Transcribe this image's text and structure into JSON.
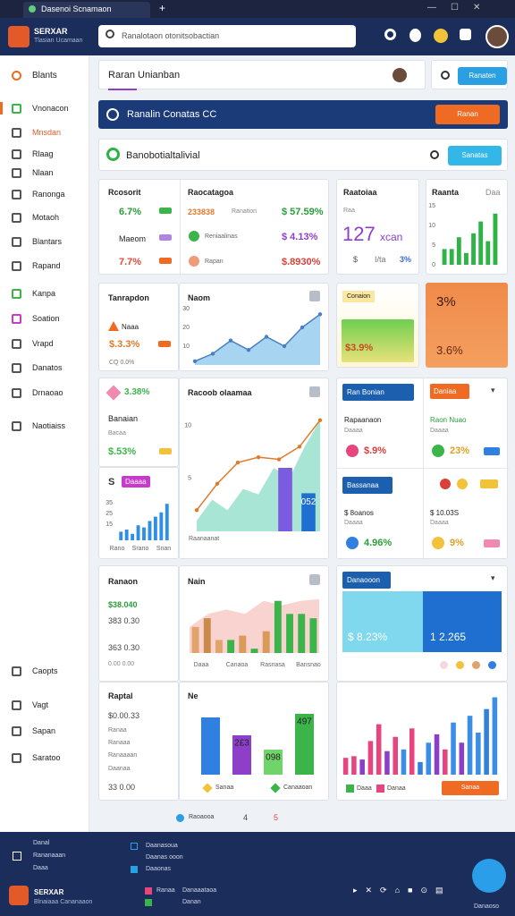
{
  "browser": {
    "tab_title": "Dasenoi Scnamaon"
  },
  "header": {
    "brand": "SERXAR",
    "brand_sub": "Tlasian Ucamaan",
    "search_placeholder": "Ranalotaon otonitsobactian"
  },
  "sidebar": {
    "items": [
      "Blants",
      "Vnonacon",
      "Mnsdan",
      "Rlaag",
      "Nlaan",
      "Ranonga",
      "Motaoh",
      "Blantars",
      "Rapand",
      "Kanpa",
      "Soation",
      "Vrapd",
      "Danatos",
      "Drnaoao",
      "Naotiaiss"
    ],
    "bottom_items": [
      "Caopts",
      "Vagt",
      "Sapan",
      "Saratoo"
    ]
  },
  "topbar": {
    "title": "Raran Unianban",
    "button": "Ranaten"
  },
  "banner": {
    "title": "Ranalin Conatas CC",
    "button": "Ranan"
  },
  "section": {
    "title": "Banobotialtalivial",
    "button": "Sanatas"
  },
  "cards": {
    "summary": {
      "left_title": "Rcosorit",
      "left_rows": [
        "6.7%",
        "Maeom",
        "7.7%"
      ],
      "right_title": "Raocatagoa",
      "right_rows": [
        [
          "233838",
          "Ranation",
          "$ 57.59%"
        ],
        [
          "Reniaalinas",
          "$ 4.13%"
        ],
        [
          "Rapan",
          "$.8930%"
        ]
      ]
    },
    "kpi": {
      "title": "Raatoiaa",
      "tag": "Raa",
      "value": "127",
      "value_sub": "xcan",
      "foot": [
        "$",
        "I/ta",
        "3%"
      ]
    },
    "trend": {
      "title": "Raanta",
      "tag": "Daa"
    },
    "transactions": {
      "title": "Tanrapdon",
      "label": "Naaa",
      "value": "$.3.3%",
      "foot": "CQ 0.0%"
    },
    "growth": {
      "title": "Naom"
    },
    "conversion": {
      "title": "Conaion",
      "value": "$3.9%"
    },
    "ratio": {
      "top": "3%",
      "bottom": "3.6%"
    },
    "balance": {
      "value": "3.38%",
      "title": "Banaian",
      "sub": "Bacaa",
      "change": "$.53%"
    },
    "sales": {
      "initial": "S",
      "pill": "Daaaa",
      "x_labels": [
        "Rano",
        "Srano",
        "Snan"
      ]
    },
    "report": {
      "title": "Racoob olaamaa",
      "x_label": "Raanaanat",
      "annotation": "052"
    },
    "channels": {
      "pill_a": "Ran Bonian",
      "pill_b": "Daniaa",
      "a_title": "Rapaanaon",
      "a_sub": "Daaaa",
      "a_value": "$.9%",
      "b_title": "Raon Nuao",
      "b_sub": "Daaaa",
      "b_value": "23%",
      "pill_c": "Bassanaa",
      "c_title": "$ 8oanos",
      "c_sub": "Daaaa",
      "c_value": "4.96%",
      "d_title": "$ 10.03S",
      "d_sub": "Daaaa",
      "d_value": "9%"
    },
    "revenue": {
      "title": "Ranaon",
      "rows": [
        "$38.040",
        "383 0.30",
        "363 0.30",
        "0.00 0.00"
      ]
    },
    "mix": {
      "title": "Nain",
      "x_labels": [
        "Daaa",
        "Canaoa",
        "Rasnasa",
        "Bansnao"
      ]
    },
    "totals": {
      "pill": "Danaooon",
      "left": "$ 8.23%",
      "right": "1 2.265"
    },
    "capital": {
      "title": "Raptal",
      "rows": [
        "$0.00.33",
        "Ranaa",
        "Ranaaa",
        "Ranaaaan",
        "Daanaa",
        "33 0.00"
      ]
    },
    "compare": {
      "title": "Ne",
      "annotations": [
        "2£3",
        "098",
        "497"
      ],
      "legend": [
        "Sanaa",
        "Canaaoan"
      ]
    },
    "distribution": {
      "legend": [
        "Daaa",
        "Danaa"
      ],
      "button": "Sanaa"
    }
  },
  "footer": {
    "text": "Raoaooa",
    "pages": [
      "4",
      "5"
    ]
  },
  "dock": {
    "col_a": [
      "Danal",
      "Rananaaan",
      "Daaa"
    ],
    "col_b": [
      "Daanasoua",
      "Daanas ooon",
      "Daaonas"
    ],
    "brand": "SERXAR",
    "brand_sub": "Blnaiaaa Cananaaon",
    "links": [
      "Ranaa",
      "Danaaataoa",
      "Danan"
    ],
    "status": "Danaoso"
  },
  "charts": [
    {
      "type": "bar",
      "series": [
        {
          "type": "bar",
          "color": "#2fb344",
          "values": [
            4,
            4,
            7,
            3,
            8,
            11,
            6,
            13
          ]
        }
      ],
      "ylim": [
        0,
        15
      ],
      "yticks": [
        0,
        5,
        10,
        15
      ]
    },
    {
      "type": "area",
      "series": [
        {
          "type": "area",
          "color": "#6bb8e8",
          "values": [
            2,
            6,
            13,
            8,
            15,
            10,
            20,
            27
          ]
        },
        {
          "type": "line",
          "color": "#4a7fc1",
          "values": [
            2,
            6,
            13,
            8,
            15,
            10,
            20,
            27
          ]
        }
      ],
      "ylim": [
        0,
        30
      ],
      "yticks": [
        10,
        20,
        30
      ]
    },
    {
      "type": "area",
      "series": [
        {
          "type": "area",
          "color": "#6fd3b8",
          "values": [
            1,
            3,
            2,
            4,
            3.5,
            6,
            5,
            8,
            10.5
          ]
        },
        {
          "type": "line",
          "color": "#e07b2a",
          "values": [
            2,
            4.5,
            6.5,
            7,
            6.8,
            8,
            10.5
          ]
        }
      ],
      "ylim": [
        0,
        12
      ],
      "yticks": [
        5,
        10
      ]
    },
    {
      "type": "bar",
      "series": [
        {
          "type": "bar",
          "color": "#2f8fe6",
          "values": [
            8,
            10,
            6,
            14,
            12,
            18,
            22,
            26,
            34
          ]
        }
      ],
      "ylim": [
        0,
        40
      ],
      "yticks": [
        15,
        25,
        35
      ]
    },
    {
      "type": "bar",
      "series": [
        {
          "type": "area",
          "color": "#f4b6b0",
          "values": [
            30,
            45,
            50,
            45,
            60,
            55,
            60,
            62
          ]
        },
        {
          "type": "bar",
          "color": "#d99a5a",
          "colors": [
            "#e0a36a",
            "#c98a4a",
            "#e0a36a",
            "#3bb54a",
            "#d99a5a",
            "#3bb54a",
            "#d99a5a",
            "#3bb54a",
            "#3bb54a",
            "#3bb54a",
            "#3bb54a"
          ],
          "values": [
            30,
            40,
            15,
            15,
            20,
            5,
            25,
            60,
            45,
            45,
            40
          ]
        }
      ],
      "ylim": [
        0,
        70
      ]
    },
    {
      "type": "bar",
      "series": [
        {
          "type": "bar",
          "color": "#2f80e0",
          "colors": [
            "#2f80e0",
            "#8e3fc9",
            "#6fd46a",
            "#3bb54a"
          ],
          "values": [
            80,
            55,
            35,
            85
          ]
        }
      ],
      "ylim": [
        0,
        100
      ]
    },
    {
      "type": "bar",
      "series": [
        {
          "type": "bar",
          "color": "#e8457f",
          "colors": [
            "#e8457f",
            "#e8457f",
            "#8b3fc9",
            "#e8457f",
            "#e8457f",
            "#8b3fc9",
            "#e8457f",
            "#3a8ee6",
            "#e8457f",
            "#2f80e0",
            "#3a8ee6",
            "#8b3fc9",
            "#e8457f",
            "#3a8ee6",
            "#8b3fc9",
            "#3a8ee6",
            "#3a8ee6",
            "#2f80e0",
            "#3a8ee6"
          ],
          "values": [
            20,
            22,
            18,
            40,
            60,
            28,
            45,
            30,
            55,
            15,
            38,
            48,
            30,
            62,
            38,
            70,
            50,
            78,
            92
          ]
        }
      ],
      "ylim": [
        0,
        100
      ]
    },
    {
      "type": "bar",
      "series": [
        {
          "type": "bar",
          "color": "#7b5be0",
          "colors": [
            "#7b5be0",
            "#1f6fd0"
          ],
          "values": [
            50,
            30
          ]
        }
      ],
      "ylim": [
        0,
        100
      ]
    }
  ]
}
